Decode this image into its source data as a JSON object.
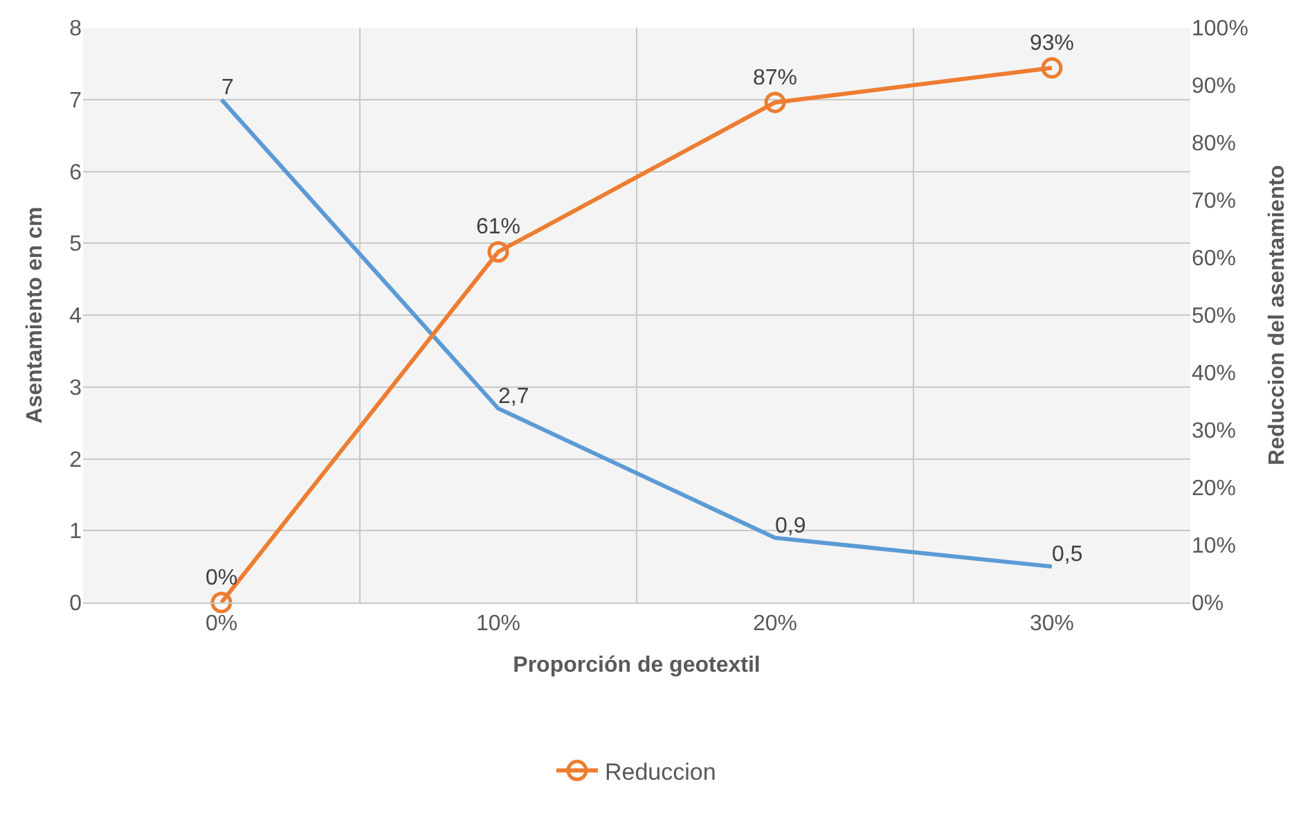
{
  "chart_data": {
    "type": "line",
    "xlabel": "Proporción de geotextil",
    "ylabel": "Asentamiento en cm",
    "y2label": "Reduccion del asentamiento",
    "categories": [
      "0%",
      "10%",
      "20%",
      "30%"
    ],
    "series": [
      {
        "color": "#5b9bd5",
        "values": [
          7,
          2.7,
          0.9,
          0.5
        ],
        "value_labels": [
          "7",
          "2,7",
          "0,9",
          "0,5"
        ],
        "marker": "none"
      },
      {
        "name": "Reduccion",
        "color": "#ed7d31",
        "axis": "y2",
        "values": [
          0,
          61,
          87,
          93
        ],
        "value_labels": [
          "0%",
          "61%",
          "87%",
          "93%"
        ],
        "marker": "circle"
      }
    ],
    "ylim": [
      0,
      8
    ],
    "yticks": [
      0,
      1,
      2,
      3,
      4,
      5,
      6,
      7,
      8
    ],
    "y2lim": [
      0,
      100
    ],
    "y2ticks": [
      {
        "value": 0,
        "label": "0%"
      },
      {
        "value": 10,
        "label": "10%"
      },
      {
        "value": 20,
        "label": "20%"
      },
      {
        "value": 30,
        "label": "30%"
      },
      {
        "value": 40,
        "label": "40%"
      },
      {
        "value": 50,
        "label": "50%"
      },
      {
        "value": 60,
        "label": "60%"
      },
      {
        "value": 70,
        "label": "70%"
      },
      {
        "value": 80,
        "label": "80%"
      },
      {
        "value": 90,
        "label": "90%"
      },
      {
        "value": 100,
        "label": "100%"
      }
    ],
    "grid": true,
    "legend": "bottom",
    "line_style": "solid"
  }
}
